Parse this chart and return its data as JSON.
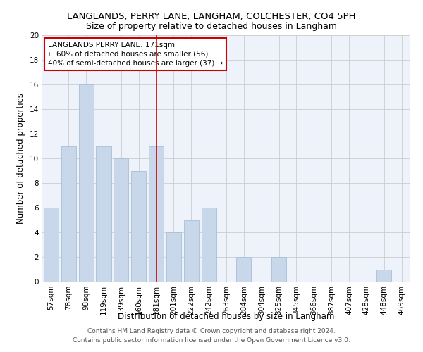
{
  "title": "LANGLANDS, PERRY LANE, LANGHAM, COLCHESTER, CO4 5PH",
  "subtitle": "Size of property relative to detached houses in Langham",
  "xlabel": "Distribution of detached houses by size in Langham",
  "ylabel": "Number of detached properties",
  "bar_color": "#c8d8ea",
  "bar_edge_color": "#a8c0d8",
  "background_color": "#eef2fb",
  "grid_color": "#cccccc",
  "categories": [
    "57sqm",
    "78sqm",
    "98sqm",
    "119sqm",
    "139sqm",
    "160sqm",
    "181sqm",
    "201sqm",
    "222sqm",
    "242sqm",
    "263sqm",
    "284sqm",
    "304sqm",
    "325sqm",
    "345sqm",
    "366sqm",
    "387sqm",
    "407sqm",
    "428sqm",
    "448sqm",
    "469sqm"
  ],
  "values": [
    6,
    11,
    16,
    11,
    10,
    9,
    11,
    4,
    5,
    6,
    0,
    2,
    0,
    2,
    0,
    0,
    0,
    0,
    0,
    1,
    0
  ],
  "ylim": [
    0,
    20
  ],
  "yticks": [
    0,
    2,
    4,
    6,
    8,
    10,
    12,
    14,
    16,
    18,
    20
  ],
  "vline_x": 6,
  "vline_color": "#cc0000",
  "annotation_text": "LANGLANDS PERRY LANE: 171sqm\n← 60% of detached houses are smaller (56)\n40% of semi-detached houses are larger (37) →",
  "annotation_box_color": "#cc0000",
  "footer_text": "Contains HM Land Registry data © Crown copyright and database right 2024.\nContains public sector information licensed under the Open Government Licence v3.0.",
  "title_fontsize": 9.5,
  "subtitle_fontsize": 9,
  "ylabel_fontsize": 8.5,
  "xlabel_fontsize": 8.5,
  "tick_fontsize": 7.5,
  "annotation_fontsize": 7.5,
  "footer_fontsize": 6.5
}
